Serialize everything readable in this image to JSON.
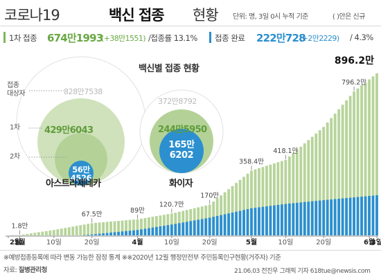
{
  "header": {
    "title_a": "코로나19",
    "title_b": "백신 접종",
    "title_c": "현황",
    "subtitle": "단위: 명, 3일 0시 누적 기준",
    "legend_new": "( )안은 신규"
  },
  "summary": {
    "first_label": "1차 접종",
    "first_value": "674만1993",
    "first_increase": "(+38만1551)",
    "first_rate": "/접종률 13.1%",
    "full_label": "접종 완료",
    "full_value": "222만728",
    "full_increase": "(+2만2229)",
    "full_rate": "/ 4.3%"
  },
  "bubbles": {
    "title": "백신별 접종 현황",
    "row_target": "접종\n대상자",
    "row_first": "1차",
    "row_second": "2차",
    "az": {
      "name": "아스트라제네카",
      "target": "828만7538",
      "first": "429만6043",
      "full_a": "56만",
      "full_b": "4526"
    },
    "pf": {
      "name": "화이자",
      "target": "372만8792",
      "first": "244만5950",
      "full_a": "165만",
      "full_b": "6202"
    }
  },
  "chart_data": {
    "type": "bar",
    "x_range": [
      "2021-02-26",
      "2021-06-03"
    ],
    "x_ticks": [
      {
        "label": "2월",
        "date": "2021-02-26",
        "bold": true
      },
      {
        "label": "3월",
        "date": "2021-03-01",
        "bold": true
      },
      {
        "label": "10일",
        "date": "2021-03-10"
      },
      {
        "label": "20일",
        "date": "2021-03-20"
      },
      {
        "label": "4월",
        "date": "2021-04-01",
        "bold": true
      },
      {
        "label": "10일",
        "date": "2021-04-10"
      },
      {
        "label": "20일",
        "date": "2021-04-20"
      },
      {
        "label": "5월",
        "date": "2021-05-01",
        "bold": true
      },
      {
        "label": "10일",
        "date": "2021-05-10"
      },
      {
        "label": "20일",
        "date": "2021-05-20"
      },
      {
        "label": "6월",
        "date": "2021-06-01",
        "bold": true
      },
      {
        "label": "3일",
        "date": "2021-06-03",
        "bold": true
      }
    ],
    "y_range": [
      0,
      896.2
    ],
    "unit": "만명",
    "series": [
      {
        "color": "#b7d49a",
        "anchors": [
          [
            "2021-02-26",
            0
          ],
          [
            "2021-03-01",
            1.8
          ],
          [
            "2021-03-10",
            30
          ],
          [
            "2021-03-20",
            67.5
          ],
          [
            "2021-04-01",
            89
          ],
          [
            "2021-04-10",
            120.7
          ],
          [
            "2021-04-20",
            170
          ],
          [
            "2021-05-01",
            358.4
          ],
          [
            "2021-05-10",
            418.1
          ],
          [
            "2021-05-20",
            600
          ],
          [
            "2021-05-28",
            796.2
          ],
          [
            "2021-06-03",
            896.2
          ]
        ]
      },
      {
        "color": "#2c8fcf",
        "anchors": [
          [
            "2021-02-26",
            0
          ],
          [
            "2021-03-17",
            0
          ],
          [
            "2021-03-20",
            5
          ],
          [
            "2021-04-01",
            30
          ],
          [
            "2021-04-10",
            60
          ],
          [
            "2021-04-20",
            98
          ],
          [
            "2021-05-01",
            150
          ],
          [
            "2021-05-10",
            174
          ],
          [
            "2021-05-20",
            195
          ],
          [
            "2021-06-03",
            222
          ]
        ]
      }
    ],
    "annotations": [
      {
        "date": "2021-03-01",
        "value": 1.8,
        "label": "1.8만"
      },
      {
        "date": "2021-03-20",
        "value": 67.5,
        "label": "67.5만"
      },
      {
        "date": "2021-04-01",
        "value": 89,
        "label": "89만"
      },
      {
        "date": "2021-04-10",
        "value": 120.7,
        "label": "120.7만"
      },
      {
        "date": "2021-04-20",
        "value": 170,
        "label": "170만"
      },
      {
        "date": "2021-05-01",
        "value": 358.4,
        "label": "358.4만"
      },
      {
        "date": "2021-05-10",
        "value": 418.1,
        "label": "418.1만"
      },
      {
        "date": "2021-05-28",
        "value": 796.2,
        "label": "796.2만"
      },
      {
        "date": "2021-06-03",
        "value": 896.2,
        "label": "896.2만",
        "bold": true
      }
    ]
  },
  "footer": {
    "footnote": "※예방접종등록에 따라 변동 가능한 잠정 통계  ※※2020년 12월 행정안전부 주민등록인구현황(거주자) 기준",
    "source_label": "자료: ",
    "source": "질병관리청",
    "credit": "21.06.03  전진우  그래픽  기자  618tue@newsis.com"
  }
}
